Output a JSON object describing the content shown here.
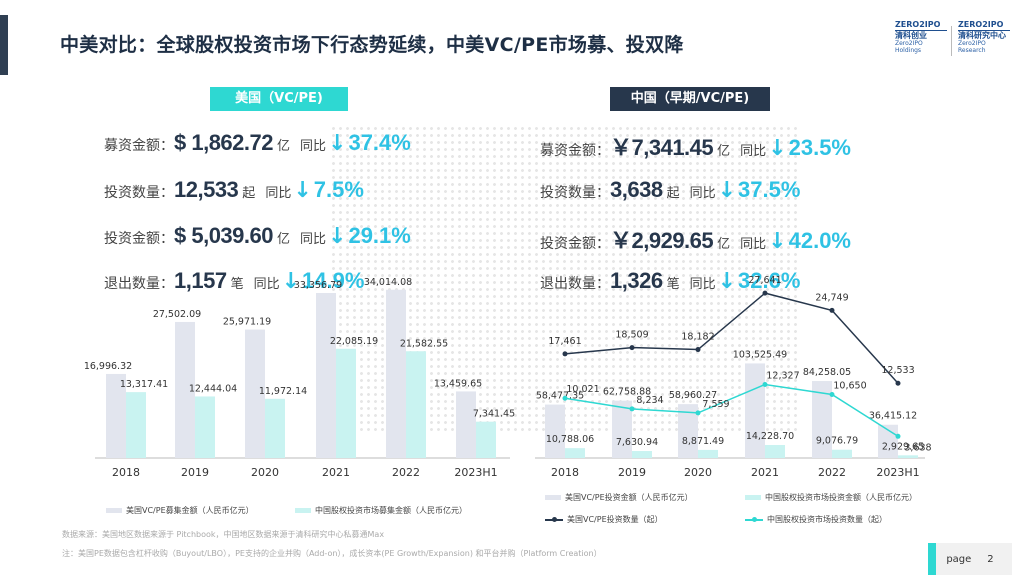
{
  "title": "中美对比：全球股权投资市场下行态势延续，中美VC/PE市场募、投双降",
  "logos": [
    {
      "top": "ZERO2IPO",
      "cn": "清科创业",
      "en": "Zero2IPO Holdings"
    },
    {
      "top": "ZERO2IPO",
      "cn": "清科研究中心",
      "en": "Zero2IPO Research"
    }
  ],
  "us": {
    "tag": "美国（VC/PE)",
    "kpis": [
      {
        "label": "募资金额：",
        "value": "$  1,862.72",
        "unit": "亿",
        "yoy": "同比",
        "arrow": "↓",
        "pct": "37.4%"
      },
      {
        "label": "投资数量：",
        "value": "12,533",
        "unit": "起",
        "yoy": "同比",
        "arrow": "↓",
        "pct": "7.5%"
      },
      {
        "label": "投资金额：",
        "value": "$  5,039.60",
        "unit": "亿",
        "yoy": "同比",
        "arrow": "↓",
        "pct": "29.1%"
      },
      {
        "label": "退出数量：",
        "value": "1,157",
        "unit": "笔",
        "yoy": "同比",
        "arrow": "↓",
        "pct": "14.9%"
      }
    ]
  },
  "cn": {
    "tag": "中国（早期/VC/PE)",
    "kpis": [
      {
        "label": "募资金额：",
        "value": "￥7,341.45",
        "unit": "亿",
        "yoy": "同比",
        "arrow": "↓",
        "pct": "23.5%"
      },
      {
        "label": "投资数量：",
        "value": "3,638",
        "unit": "起",
        "yoy": "同比",
        "arrow": "↓",
        "pct": "37.5%"
      },
      {
        "label": "投资金额：",
        "value": "￥2,929.65",
        "unit": "亿",
        "yoy": "同比",
        "arrow": "↓",
        "pct": "42.0%"
      },
      {
        "label": "退出数量：",
        "value": "1,326",
        "unit": "笔",
        "yoy": "同比",
        "arrow": "↓",
        "pct": "32.6%"
      }
    ]
  },
  "chart_data": [
    {
      "type": "bar",
      "title": "",
      "categories": [
        "2018",
        "2019",
        "2020",
        "2021",
        "2022",
        "2023H1"
      ],
      "series": [
        {
          "name": "美国VC/PE募集金额（人民币亿元）",
          "color": "#e2e5ee",
          "values": [
            16996.32,
            27502.09,
            25971.19,
            33356.79,
            34014.08,
            13459.65
          ]
        },
        {
          "name": "中国股权投资市场募集金额（人民币亿元）",
          "color": "#c9f3f1",
          "values": [
            13317.41,
            12444.04,
            11972.14,
            22085.19,
            21582.55,
            7341.45
          ]
        }
      ],
      "labels": [
        [
          "16,996.32",
          "27,502.09",
          "25,971.19",
          "33,356.79",
          "34,014.08",
          "13,459.65"
        ],
        [
          "13,317.41",
          "12,444.04",
          "11,972.14",
          "22,085.19",
          "21,582.55",
          "7,341.45"
        ]
      ],
      "ylim": [
        0,
        40000
      ]
    },
    {
      "type": "bar+line",
      "title": "",
      "categories": [
        "2018",
        "2019",
        "2020",
        "2021",
        "2022",
        "2023H1"
      ],
      "bars": [
        {
          "name": "美国VC/PE投资金额（人民币亿元）",
          "color": "#e2e5ee",
          "values": [
            58477.35,
            62758.88,
            58960.27,
            103525.49,
            84258.05,
            36415.12
          ],
          "labels": [
            "58,477.35",
            "62,758.88",
            "58,960.27",
            "103,525.49",
            "84,258.05",
            "36,415.12"
          ]
        },
        {
          "name": "中国股权投资市场投资金额（人民币亿元）",
          "color": "#c9f3f1",
          "values": [
            10788.06,
            7630.94,
            8871.49,
            14228.7,
            9076.79,
            2929.65
          ],
          "labels": [
            "10,788.06",
            "7,630.94",
            "8,871.49",
            "14,228.70",
            "9,076.79",
            "2,929.65"
          ]
        }
      ],
      "lines": [
        {
          "name": "美国VC/PE投资数量（起）",
          "color": "#27374c",
          "values": [
            17461,
            18509,
            18182,
            27641,
            24749,
            12533
          ],
          "labels": [
            "17,461",
            "18,509",
            "18,182",
            "27,641",
            "24,749",
            "12,533"
          ]
        },
        {
          "name": "中国股权投资市场投资数量（起）",
          "color": "#2ed8d2",
          "values": [
            10021,
            8234,
            7559,
            12327,
            10650,
            3638
          ],
          "labels": [
            "10,021",
            "8,234",
            "7,559",
            "12,327",
            "10,650",
            "3,638"
          ]
        }
      ],
      "bar_ylim": [
        0,
        120000
      ],
      "line_ylim": [
        0,
        30000
      ]
    }
  ],
  "notes": {
    "source": "数据来源：美国地区数据来源于 Pitchbook，中国地区数据来源于清科研究中心私募通Max",
    "remark": "注：美国PE数据包含杠杆收购（Buyout/LBO），PE支持的企业并购（Add-on），成长资本(PE Growth/Expansion) 和平台并购（Platform Creation）"
  },
  "page": {
    "label": "page",
    "number": "2"
  }
}
